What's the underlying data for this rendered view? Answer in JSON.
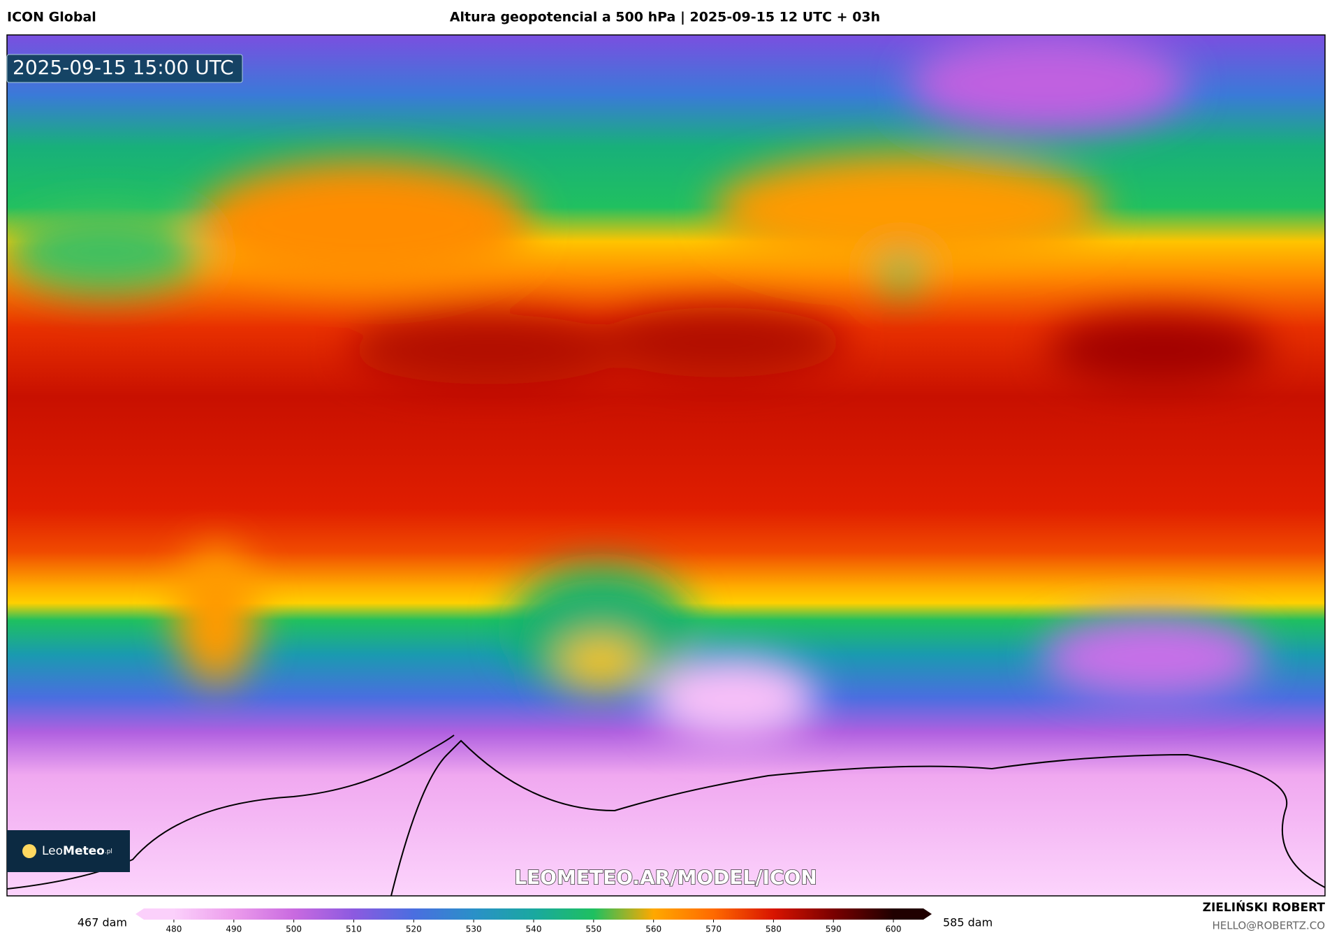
{
  "header": {
    "model": "ICON Global",
    "title": "Altura geopotencial a 500 hPa | 2025-09-15 12 UTC + 03h"
  },
  "map": {
    "valid_time": "2025-09-15 15:00 UTC",
    "watermark": "LEOMETEO.AR/MODEL/ICON",
    "logo": {
      "light": "Leo",
      "bold": "Meteo",
      "suffix": ".pl"
    }
  },
  "colorbar": {
    "min_label": "467 dam",
    "max_label": "585 dam",
    "range": [
      475,
      605
    ],
    "ticks": [
      480,
      490,
      500,
      510,
      520,
      530,
      540,
      550,
      560,
      570,
      580,
      590,
      600
    ],
    "colors": [
      "#fbd0fb",
      "#ec9cec",
      "#c96ae0",
      "#8c5ae0",
      "#4a6ee0",
      "#2a90c8",
      "#1aa8a0",
      "#1ec060",
      "#ffa800",
      "#ff6a00",
      "#d81400",
      "#7a0000",
      "#200000"
    ]
  },
  "credit": {
    "name": "ZIELIŃSKI ROBERT",
    "email": "HELLO@ROBERTZ.CO"
  }
}
